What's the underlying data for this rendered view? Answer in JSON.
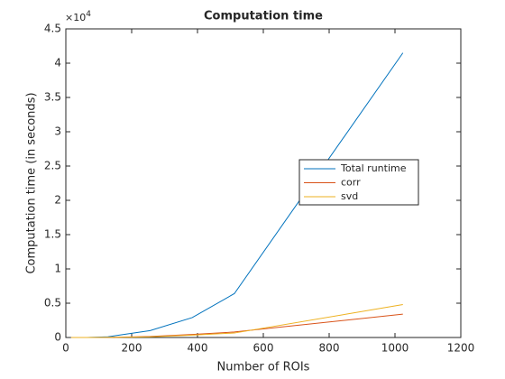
{
  "chart_data": {
    "type": "line",
    "title": "Computation time",
    "xlabel": "Number of ROIs",
    "ylabel": "Computation time (in seconds)",
    "y_multiplier": {
      "base": "×10",
      "power": "4"
    },
    "x": [
      16,
      64,
      128,
      256,
      384,
      512,
      1024
    ],
    "series": [
      {
        "name": "Total runtime",
        "color": "#0072bd",
        "values": [
          0,
          5,
          100,
          1000,
          2900,
          6400,
          41500
        ]
      },
      {
        "name": "corr",
        "color": "#d95319",
        "values": [
          0,
          0,
          20,
          150,
          450,
          800,
          3400
        ]
      },
      {
        "name": "svd",
        "color": "#edb120",
        "values": [
          0,
          0,
          10,
          100,
          350,
          650,
          4800
        ]
      }
    ],
    "xlim": [
      0,
      1200
    ],
    "xticks": [
      0,
      200,
      400,
      600,
      800,
      1000,
      1200
    ],
    "ylim": [
      0,
      45000
    ],
    "yticks": [
      0,
      {
        "value": 5000,
        "label": "0.5"
      },
      {
        "value": 10000,
        "label": "1"
      },
      {
        "value": 15000,
        "label": "1.5"
      },
      {
        "value": 20000,
        "label": "2"
      },
      {
        "value": 25000,
        "label": "2.5"
      },
      {
        "value": 30000,
        "label": "3"
      },
      {
        "value": 35000,
        "label": "3.5"
      },
      {
        "value": 40000,
        "label": "4"
      },
      {
        "value": 45000,
        "label": "4.5"
      }
    ],
    "grid": false,
    "legend": "east"
  }
}
